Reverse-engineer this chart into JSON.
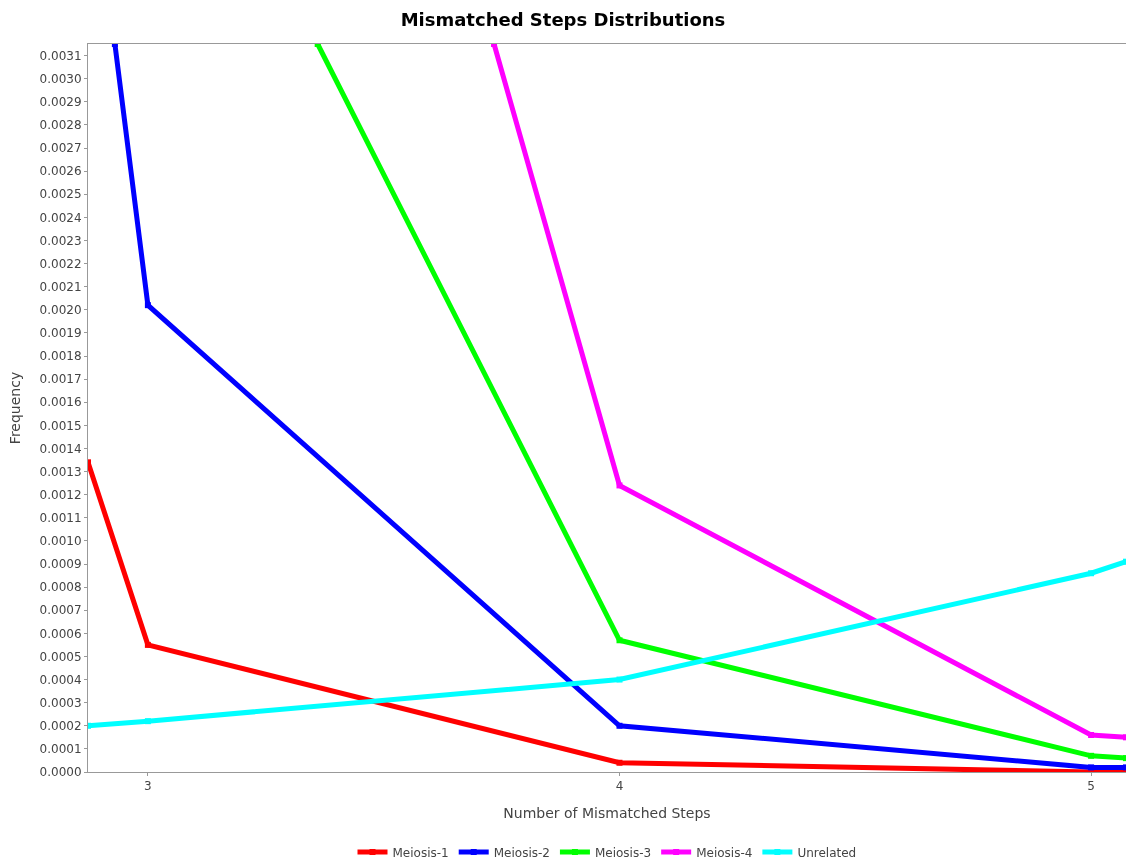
{
  "chart_data": {
    "type": "line",
    "title": "Mismatched Steps Distributions",
    "xlabel": "Number of Mismatched Steps",
    "ylabel": "Frequency",
    "series": [
      {
        "name": "Meiosis-1",
        "color": "#ff0000",
        "x": [
          2.873,
          3,
          4,
          5,
          5.074
        ],
        "values": [
          0.00134,
          0.00055,
          4e-05,
          0,
          0
        ]
      },
      {
        "name": "Meiosis-2",
        "color": "#0000ff",
        "x": [
          2.93,
          3,
          4,
          5,
          5.074
        ],
        "values": [
          0.00315,
          0.00202,
          0.0002,
          2e-05,
          2e-05
        ]
      },
      {
        "name": "Meiosis-3",
        "color": "#00ff00",
        "x": [
          3.36,
          4,
          5,
          5.074
        ],
        "values": [
          0.00315,
          0.00057,
          7e-05,
          6e-05
        ]
      },
      {
        "name": "Meiosis-4",
        "color": "#ff00ff",
        "x": [
          3.734,
          4,
          5,
          5.074
        ],
        "values": [
          0.00315,
          0.00124,
          0.00016,
          0.00015
        ]
      },
      {
        "name": "Unrelated",
        "color": "#00ffff",
        "x": [
          2.873,
          3,
          4,
          5,
          5.074
        ],
        "values": [
          0.0002,
          0.00022,
          0.0004,
          0.00086,
          0.00091
        ]
      }
    ],
    "xlim": [
      2.873,
      5.074
    ],
    "xticks": [
      3,
      4,
      5
    ],
    "ylim": [
      0,
      0.00315
    ],
    "yticks": [
      {
        "value": 0,
        "label": "0.0000"
      },
      {
        "value": 0.0001,
        "label": "0.0001"
      },
      {
        "value": 0.0002,
        "label": "0.0002"
      },
      {
        "value": 0.0003,
        "label": "0.0003"
      },
      {
        "value": 0.0004,
        "label": "0.0004"
      },
      {
        "value": 0.0005,
        "label": "0.0005"
      },
      {
        "value": 0.0006,
        "label": "0.0006"
      },
      {
        "value": 0.0007,
        "label": "0.0007"
      },
      {
        "value": 0.0008,
        "label": "0.0008"
      },
      {
        "value": 0.0009,
        "label": "0.0009"
      },
      {
        "value": 0.001,
        "label": "0.0010"
      },
      {
        "value": 0.0011,
        "label": "0.0011"
      },
      {
        "value": 0.0012,
        "label": "0.0012"
      },
      {
        "value": 0.0013,
        "label": "0.0013"
      },
      {
        "value": 0.0014,
        "label": "0.0014"
      },
      {
        "value": 0.0015,
        "label": "0.0015"
      },
      {
        "value": 0.0016,
        "label": "0.0016"
      },
      {
        "value": 0.0017,
        "label": "0.0017"
      },
      {
        "value": 0.0018,
        "label": "0.0018"
      },
      {
        "value": 0.0019,
        "label": "0.0019"
      },
      {
        "value": 0.002,
        "label": "0.0020"
      },
      {
        "value": 0.0021,
        "label": "0.0021"
      },
      {
        "value": 0.0022,
        "label": "0.0022"
      },
      {
        "value": 0.0023,
        "label": "0.0023"
      },
      {
        "value": 0.0024,
        "label": "0.0024"
      },
      {
        "value": 0.0025,
        "label": "0.0025"
      },
      {
        "value": 0.0026,
        "label": "0.0026"
      },
      {
        "value": 0.0027,
        "label": "0.0027"
      },
      {
        "value": 0.0028,
        "label": "0.0028"
      },
      {
        "value": 0.0029,
        "label": "0.0029"
      },
      {
        "value": 0.003,
        "label": "0.0030"
      },
      {
        "value": 0.0031,
        "label": "0.0031"
      }
    ],
    "legend": "bottom",
    "marker": "square",
    "line_style": "solid"
  }
}
